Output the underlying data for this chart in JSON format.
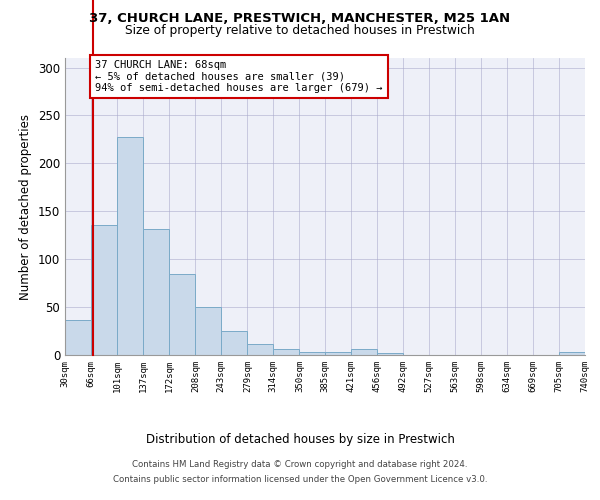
{
  "title1": "37, CHURCH LANE, PRESTWICH, MANCHESTER, M25 1AN",
  "title2": "Size of property relative to detached houses in Prestwich",
  "xlabel": "Distribution of detached houses by size in Prestwich",
  "ylabel": "Number of detached properties",
  "bar_edges": [
    30,
    66,
    101,
    137,
    172,
    208,
    243,
    279,
    314,
    350,
    385,
    421,
    456,
    492,
    527,
    563,
    598,
    634,
    669,
    705,
    740
  ],
  "bar_heights": [
    37,
    136,
    228,
    132,
    85,
    50,
    25,
    12,
    6,
    3,
    3,
    6,
    2,
    0,
    0,
    0,
    0,
    0,
    0,
    3
  ],
  "bar_color": "#c9d9ea",
  "bar_edge_color": "#7aaac8",
  "property_line_x": 68,
  "property_line_color": "#cc0000",
  "annotation_line1": "37 CHURCH LANE: 68sqm",
  "annotation_line2": "← 5% of detached houses are smaller (39)",
  "annotation_line3": "94% of semi-detached houses are larger (679) →",
  "annotation_box_edge_color": "#cc0000",
  "ylim": [
    0,
    310
  ],
  "yticks": [
    0,
    50,
    100,
    150,
    200,
    250,
    300
  ],
  "grid_color": "#aaaacc",
  "background_color": "#eef0f8",
  "footer_line1": "Contains HM Land Registry data © Crown copyright and database right 2024.",
  "footer_line2": "Contains public sector information licensed under the Open Government Licence v3.0.",
  "tick_labels": [
    "30sqm",
    "66sqm",
    "101sqm",
    "137sqm",
    "172sqm",
    "208sqm",
    "243sqm",
    "279sqm",
    "314sqm",
    "350sqm",
    "385sqm",
    "421sqm",
    "456sqm",
    "492sqm",
    "527sqm",
    "563sqm",
    "598sqm",
    "634sqm",
    "669sqm",
    "705sqm",
    "740sqm"
  ]
}
